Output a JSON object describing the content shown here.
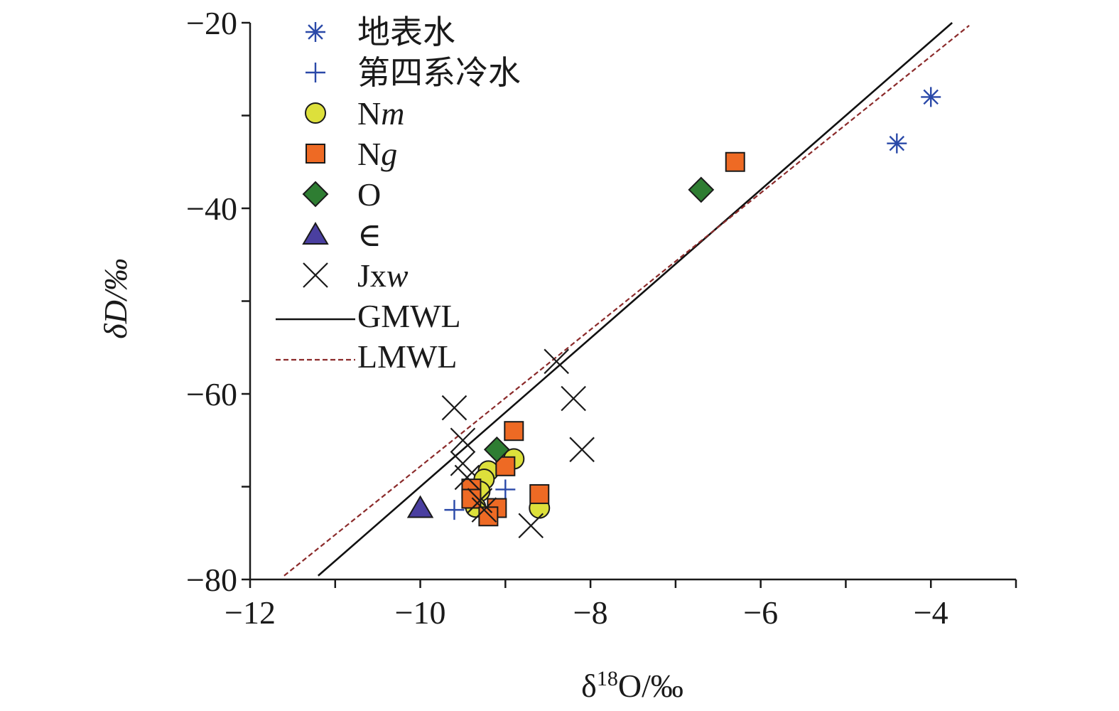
{
  "chart_data": {
    "type": "scatter",
    "title": "",
    "xlabel": "δ18O/‰",
    "ylabel": "δD/‰",
    "xlim": [
      -12,
      -3
    ],
    "ylim": [
      -80,
      -20
    ],
    "xticks": [
      -12,
      -10,
      -8,
      -6,
      -4
    ],
    "yticks": [
      -80,
      -60,
      -40,
      -20
    ],
    "xtick_labels": [
      "−12",
      "−10",
      "−8",
      "−6",
      "−4"
    ],
    "ytick_labels": [
      "−80",
      "−60",
      "−40",
      "−20"
    ],
    "grid": false,
    "legend_position": "top-left",
    "series": [
      {
        "name": "地表水",
        "marker": "asterisk",
        "color": "#2a49a8",
        "points": [
          [
            -4.4,
            -33
          ],
          [
            -4.0,
            -28
          ]
        ]
      },
      {
        "name": "第四系冷水",
        "marker": "plus",
        "color": "#2a49a8",
        "points": [
          [
            -9.6,
            -72.5
          ],
          [
            -9.0,
            -70.3
          ]
        ]
      },
      {
        "name": "Nm",
        "marker": "circle",
        "color": "#dde03b",
        "points": [
          [
            -8.6,
            -72.3
          ],
          [
            -8.9,
            -67
          ],
          [
            -9.2,
            -68.3
          ],
          [
            -9.25,
            -69.2
          ],
          [
            -9.3,
            -70.5
          ],
          [
            -9.35,
            -72.2
          ]
        ]
      },
      {
        "name": "Ng",
        "marker": "square",
        "color": "#ee6a24",
        "points": [
          [
            -6.3,
            -35
          ],
          [
            -8.9,
            -64
          ],
          [
            -9.0,
            -67.8
          ],
          [
            -8.6,
            -70.8
          ],
          [
            -9.4,
            -70.2
          ],
          [
            -9.4,
            -71.3
          ],
          [
            -9.1,
            -72.3
          ],
          [
            -9.2,
            -73.2
          ]
        ]
      },
      {
        "name": "O",
        "marker": "diamond",
        "color": "#2e7d32",
        "points": [
          [
            -6.7,
            -38
          ],
          [
            -9.1,
            -66
          ]
        ]
      },
      {
        "name": "∈",
        "marker": "triangle",
        "color": "#4a3fa0",
        "points": [
          [
            -10.0,
            -72.3
          ]
        ]
      },
      {
        "name": "Jxw",
        "marker": "x",
        "color": "#1a1a1a",
        "points": [
          [
            -9.6,
            -61.5
          ],
          [
            -8.4,
            -56.5
          ],
          [
            -8.2,
            -60.5
          ],
          [
            -8.1,
            -66
          ],
          [
            -8.7,
            -74.2
          ],
          [
            -9.5,
            -65
          ],
          [
            -9.5,
            -67.5
          ],
          [
            -9.45,
            -69
          ],
          [
            -9.3,
            -71.5
          ],
          [
            -9.25,
            -72.5
          ]
        ]
      }
    ],
    "lines": [
      {
        "name": "GMWL",
        "style": "solid",
        "color": "#111111",
        "x": [
          -11.2,
          -3.75
        ],
        "y": [
          -79.6,
          -20.0
        ]
      },
      {
        "name": "LMWL",
        "style": "dashed",
        "color": "#8b2a2a",
        "x": [
          -11.6,
          -3.55
        ],
        "y": [
          -79.6,
          -20.3
        ]
      }
    ]
  }
}
